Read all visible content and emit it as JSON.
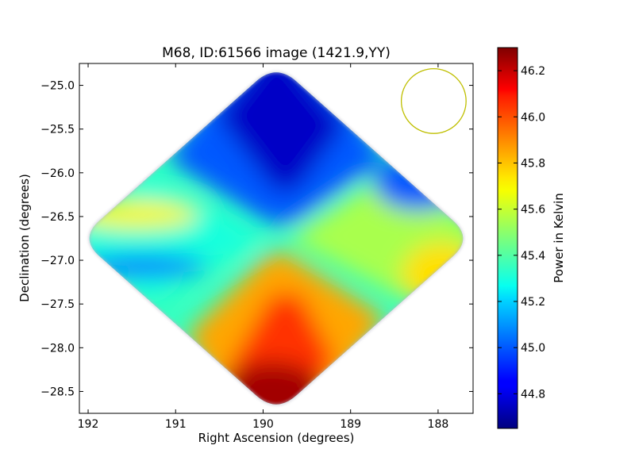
{
  "chart_data": {
    "type": "heatmap",
    "title": "M68, ID:61566 image (1421.9,YY)",
    "xlabel": "Right Ascension (degrees)",
    "ylabel": "Declination (degrees)",
    "xlim": [
      192.1,
      187.6
    ],
    "ylim": [
      -28.75,
      -24.75
    ],
    "xticks": [
      192,
      191,
      190,
      189,
      188
    ],
    "xtick_labels": [
      "192",
      "191",
      "190",
      "189",
      "188"
    ],
    "yticks": [
      -25.0,
      -25.5,
      -26.0,
      -26.5,
      -27.0,
      -27.5,
      -28.0,
      -28.5
    ],
    "ytick_labels": [
      "−25.0",
      "−25.5",
      "−26.0",
      "−26.5",
      "−27.0",
      "−27.5",
      "−28.0",
      "−28.5"
    ],
    "field_center": [
      189.85,
      -26.75
    ],
    "field_corners": [
      [
        189.85,
        -24.75
      ],
      [
        187.6,
        -26.75
      ],
      [
        189.85,
        -28.75
      ],
      [
        192.1,
        -26.75
      ]
    ],
    "beam_circle": {
      "center": [
        188.05,
        -25.18
      ],
      "radius_deg_dec": 0.37,
      "color": "#bfbf00"
    },
    "colormap": "jet",
    "colorbar": {
      "label": "Power in Kelvin",
      "vmin": 44.65,
      "vmax": 46.3,
      "ticks": [
        44.8,
        45.0,
        45.2,
        45.4,
        45.6,
        45.8,
        46.0,
        46.2
      ],
      "tick_labels": [
        "44.8",
        "45.0",
        "45.2",
        "45.4",
        "45.6",
        "45.8",
        "46.0",
        "46.2"
      ]
    },
    "field_structure": {
      "north_lobe_min": 44.75,
      "south_lobe_max": 46.25,
      "east_lobe_value": 45.55,
      "west_lobe_value": 45.3,
      "east_edge_min": 45.0,
      "west_edge_value": 45.35
    }
  }
}
